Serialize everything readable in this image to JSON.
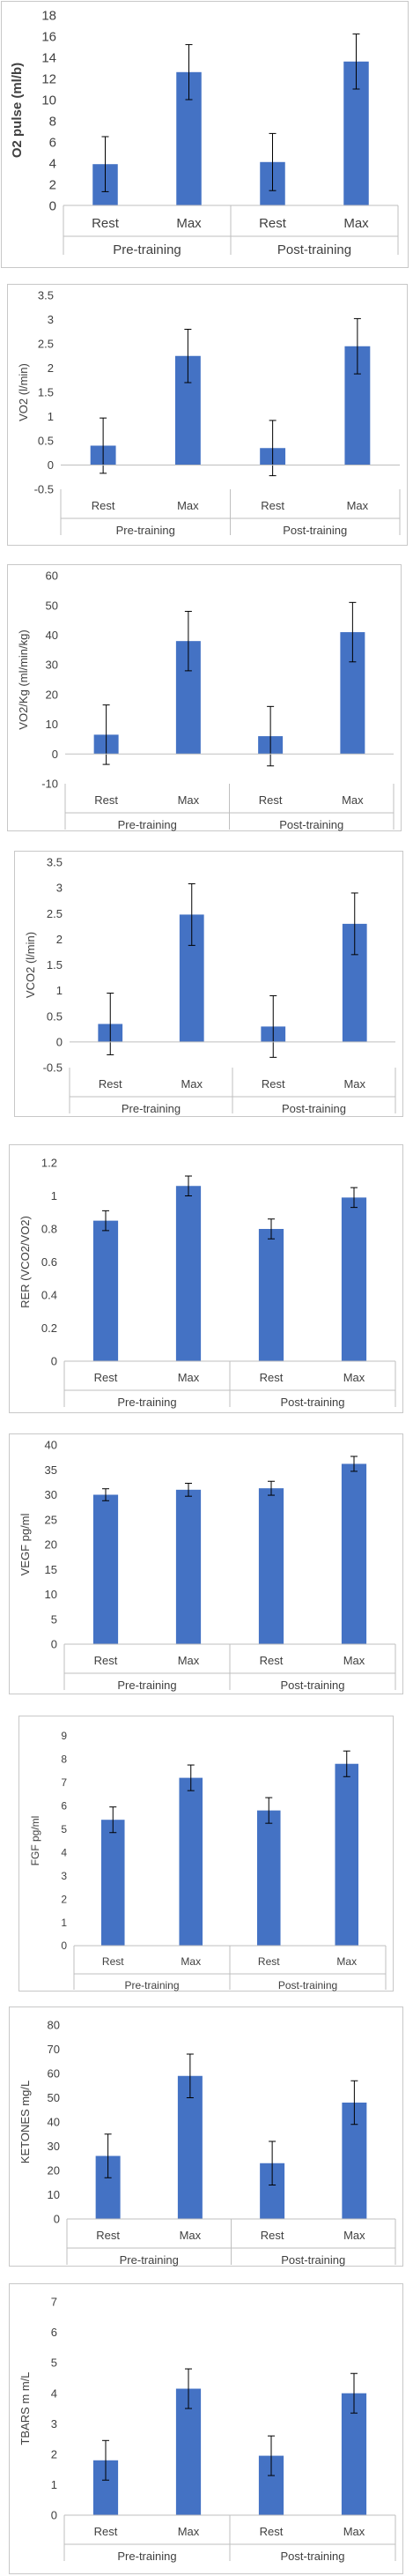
{
  "chart_data": [
    {
      "type": "bar",
      "ylabel": "O2 pulse (ml/b)",
      "ylim": [
        0,
        18
      ],
      "ystep": 2,
      "yticks": [
        "0",
        "2",
        "4",
        "6",
        "8",
        "10",
        "12",
        "14",
        "16",
        "18"
      ],
      "categories": [
        "Rest",
        "Max",
        "Rest",
        "Max"
      ],
      "groups": [
        "Pre-training",
        "Post-training"
      ],
      "values": [
        3.9,
        12.6,
        4.1,
        13.6
      ],
      "errors": [
        2.6,
        2.6,
        2.7,
        2.6
      ],
      "grid": false,
      "color": "#4472c4"
    },
    {
      "type": "bar",
      "ylabel": "VO2 (l/min)",
      "ylim": [
        -0.5,
        3.5
      ],
      "ystep": 0.5,
      "yticks": [
        "-0.5",
        "0",
        "0.5",
        "1",
        "1.5",
        "2",
        "2.5",
        "3",
        "3.5"
      ],
      "categories": [
        "Rest",
        "Max",
        "Rest",
        "Max"
      ],
      "groups": [
        "Pre-training",
        "Post-training"
      ],
      "values": [
        0.4,
        2.25,
        0.35,
        2.45
      ],
      "errors": [
        0.57,
        0.55,
        0.57,
        0.57
      ],
      "grid": false,
      "color": "#4472c4"
    },
    {
      "type": "bar",
      "ylabel": "VO2/Kg (ml/min/kg)",
      "ylim": [
        -10,
        60
      ],
      "ystep": 10,
      "yticks": [
        "-10",
        "0",
        "10",
        "20",
        "30",
        "40",
        "50",
        "60"
      ],
      "categories": [
        "Rest",
        "Max",
        "Rest",
        "Max"
      ],
      "groups": [
        "Pre-training",
        "Post-training"
      ],
      "values": [
        6.5,
        38,
        6,
        41
      ],
      "errors": [
        10,
        10,
        10,
        10
      ],
      "grid": false,
      "color": "#4472c4"
    },
    {
      "type": "bar",
      "ylabel": "VCO2 (l/min)",
      "ylim": [
        -0.5,
        3.5
      ],
      "ystep": 0.5,
      "yticks": [
        "-0.5",
        "0",
        "0.5",
        "1",
        "1.5",
        "2",
        "2.5",
        "3",
        "3.5"
      ],
      "categories": [
        "Rest",
        "Max",
        "Rest",
        "Max"
      ],
      "groups": [
        "Pre-training",
        "Post-training"
      ],
      "values": [
        0.35,
        2.48,
        0.3,
        2.3
      ],
      "errors": [
        0.6,
        0.6,
        0.6,
        0.6
      ],
      "grid": false,
      "color": "#4472c4"
    },
    {
      "type": "bar",
      "ylabel": "RER (VCO2/VO2)",
      "ylim": [
        0,
        1.2
      ],
      "ystep": 0.2,
      "yticks": [
        "0",
        "0.2",
        "0.4",
        "0.6",
        "0.8",
        "1",
        "1.2"
      ],
      "categories": [
        "Rest",
        "Max",
        "Rest",
        "Max"
      ],
      "groups": [
        "Pre-training",
        "Post-training"
      ],
      "values": [
        0.85,
        1.06,
        0.8,
        0.99
      ],
      "errors": [
        0.06,
        0.06,
        0.06,
        0.06
      ],
      "grid": false,
      "color": "#4472c4"
    },
    {
      "type": "bar",
      "ylabel": "VEGF pg/ml",
      "ylim": [
        0,
        40
      ],
      "ystep": 5,
      "yticks": [
        "0",
        "5",
        "10",
        "15",
        "20",
        "25",
        "30",
        "35",
        "40"
      ],
      "categories": [
        "Rest",
        "Max",
        "Rest",
        "Max"
      ],
      "groups": [
        "Pre-training",
        "Post-training"
      ],
      "values": [
        30,
        31,
        31.3,
        36.2
      ],
      "errors": [
        1.2,
        1.3,
        1.4,
        1.5
      ],
      "grid": false,
      "color": "#4472c4"
    },
    {
      "type": "bar",
      "ylabel": "FGF pg/ml",
      "ylim": [
        0,
        9
      ],
      "ystep": 1,
      "yticks": [
        "0",
        "1",
        "2",
        "3",
        "4",
        "5",
        "6",
        "7",
        "8",
        "9"
      ],
      "categories": [
        "Rest",
        "Max",
        "Rest",
        "Max"
      ],
      "groups": [
        "Pre-training",
        "Post-training"
      ],
      "values": [
        5.4,
        7.2,
        5.8,
        7.8
      ],
      "errors": [
        0.55,
        0.55,
        0.55,
        0.55
      ],
      "grid": false,
      "color": "#4472c4"
    },
    {
      "type": "bar",
      "ylabel": "KETONES mg/L",
      "ylim": [
        0,
        80
      ],
      "ystep": 10,
      "yticks": [
        "0",
        "10",
        "20",
        "30",
        "40",
        "50",
        "60",
        "70",
        "80"
      ],
      "categories": [
        "Rest",
        "Max",
        "Rest",
        "Max"
      ],
      "groups": [
        "Pre-training",
        "Post-training"
      ],
      "values": [
        26,
        59,
        23,
        48
      ],
      "errors": [
        9,
        9,
        9,
        9
      ],
      "grid": false,
      "color": "#4472c4"
    },
    {
      "type": "bar",
      "ylabel": "TBARS m m/L",
      "ylim": [
        0,
        7
      ],
      "ystep": 1,
      "yticks": [
        "0",
        "1",
        "2",
        "3",
        "4",
        "5",
        "6",
        "7"
      ],
      "categories": [
        "Rest",
        "Max",
        "Rest",
        "Max"
      ],
      "groups": [
        "Pre-training",
        "Post-training"
      ],
      "values": [
        1.8,
        4.15,
        1.95,
        4.0
      ],
      "errors": [
        0.65,
        0.65,
        0.65,
        0.65
      ],
      "grid": false,
      "color": "#4472c4"
    }
  ]
}
